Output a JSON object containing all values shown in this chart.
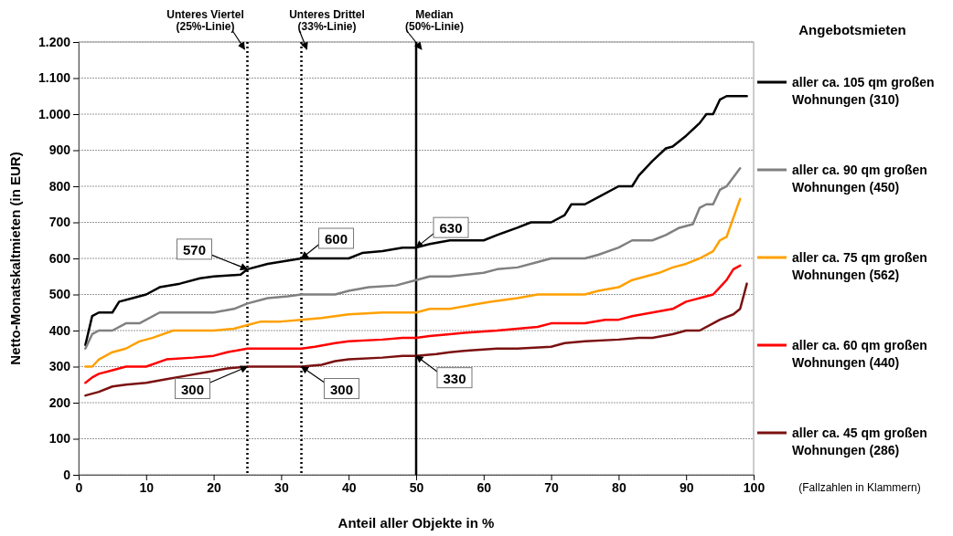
{
  "chart_data": {
    "type": "line",
    "xlabel": "Anteil aller Objekte in %",
    "ylabel": "Netto-Monatskaltmieten (in EUR)",
    "legend_title": "Angebotsmieten",
    "legend": "right",
    "grid": "y",
    "line_style": "solid",
    "marker": "none",
    "xlim": [
      0,
      100
    ],
    "xticks": [
      0,
      10,
      20,
      30,
      40,
      50,
      60,
      70,
      80,
      90,
      100
    ],
    "ylim": [
      0,
      1200
    ],
    "yticks": [
      0,
      100,
      200,
      300,
      400,
      500,
      600,
      700,
      800,
      900,
      {
        "value": 1000,
        "label": "1.000"
      },
      {
        "value": 1100,
        "label": "1.100"
      },
      {
        "value": 1200,
        "label": "1.200"
      }
    ],
    "series": [
      {
        "name": "aller ca. 105 qm großen Wohnungen (310)",
        "color": "#000000",
        "x": [
          1,
          2,
          3,
          5,
          6,
          8,
          10,
          12,
          15,
          18,
          20,
          24,
          25,
          28,
          33,
          40,
          42,
          45,
          48,
          50,
          52,
          55,
          60,
          62,
          65,
          67,
          70,
          72,
          73,
          75,
          77,
          80,
          82,
          83,
          85,
          87,
          88,
          90,
          92,
          93,
          94,
          95,
          96,
          99
        ],
        "values": [
          360,
          440,
          450,
          450,
          480,
          490,
          500,
          520,
          530,
          545,
          550,
          555,
          570,
          585,
          600,
          600,
          615,
          620,
          630,
          630,
          640,
          650,
          650,
          665,
          685,
          700,
          700,
          720,
          750,
          750,
          770,
          800,
          800,
          830,
          870,
          905,
          910,
          940,
          975,
          1000,
          1000,
          1040,
          1050,
          1050
        ]
      },
      {
        "name": "aller ca. 90 qm großen Wohnungen (450)",
        "color": "#808080",
        "x": [
          1,
          2,
          3,
          5,
          7,
          9,
          12,
          15,
          20,
          23,
          25,
          28,
          31,
          33,
          38,
          40,
          43,
          47,
          50,
          52,
          55,
          60,
          62,
          65,
          68,
          70,
          75,
          77,
          80,
          82,
          85,
          87,
          89,
          91,
          92,
          93,
          94,
          95,
          96,
          98
        ],
        "values": [
          350,
          390,
          400,
          400,
          420,
          420,
          450,
          450,
          450,
          460,
          475,
          490,
          495,
          500,
          500,
          510,
          520,
          525,
          540,
          550,
          550,
          560,
          570,
          575,
          590,
          600,
          600,
          610,
          630,
          650,
          650,
          665,
          685,
          695,
          740,
          750,
          750,
          790,
          800,
          850
        ]
      },
      {
        "name": "aller ca. 75 qm großen Wohnungen (562)",
        "color": "#ffa000",
        "x": [
          1,
          2,
          3,
          5,
          7,
          9,
          11,
          14,
          20,
          23,
          25,
          27,
          30,
          33,
          36,
          40,
          45,
          50,
          52,
          55,
          58,
          61,
          65,
          68,
          72,
          75,
          77,
          80,
          82,
          84,
          86,
          88,
          90,
          92,
          93,
          94,
          95,
          96,
          98
        ],
        "values": [
          300,
          300,
          320,
          340,
          350,
          370,
          380,
          400,
          400,
          405,
          415,
          425,
          425,
          430,
          435,
          445,
          450,
          450,
          460,
          460,
          470,
          480,
          490,
          500,
          500,
          500,
          510,
          520,
          540,
          550,
          560,
          575,
          585,
          600,
          610,
          620,
          650,
          660,
          765
        ]
      },
      {
        "name": "aller ca. 60 qm großen Wohnungen (440)",
        "color": "#ff0000",
        "x": [
          1,
          2,
          3,
          5,
          7,
          10,
          13,
          17,
          20,
          22,
          25,
          30,
          33,
          35,
          38,
          40,
          45,
          48,
          50,
          52,
          55,
          58,
          62,
          65,
          68,
          70,
          75,
          78,
          80,
          82,
          85,
          88,
          90,
          92,
          94,
          95,
          96,
          97,
          98
        ],
        "values": [
          255,
          270,
          280,
          290,
          300,
          300,
          320,
          325,
          330,
          340,
          350,
          350,
          350,
          355,
          365,
          370,
          375,
          380,
          380,
          385,
          390,
          395,
          400,
          405,
          410,
          420,
          420,
          430,
          430,
          440,
          450,
          460,
          480,
          490,
          500,
          520,
          540,
          570,
          580
        ]
      },
      {
        "name": "aller ca. 45 qm großen Wohnungen (286)",
        "color": "#7b1010",
        "x": [
          1,
          2,
          3,
          5,
          7,
          10,
          13,
          16,
          19,
          22,
          25,
          30,
          33,
          36,
          38,
          40,
          45,
          48,
          50,
          53,
          55,
          58,
          62,
          65,
          70,
          72,
          75,
          80,
          83,
          85,
          88,
          90,
          92,
          94,
          95,
          97,
          98,
          99
        ],
        "values": [
          220,
          225,
          230,
          245,
          250,
          255,
          265,
          275,
          285,
          295,
          300,
          300,
          300,
          305,
          315,
          320,
          325,
          330,
          330,
          335,
          340,
          345,
          350,
          350,
          355,
          365,
          370,
          375,
          380,
          380,
          390,
          400,
          400,
          420,
          430,
          445,
          460,
          530
        ]
      }
    ],
    "ref_lines": [
      {
        "axis": "x",
        "value": 25,
        "label": "Unteres Viertel (25%-Linie)",
        "line_style": "dotted"
      },
      {
        "axis": "x",
        "value": 33,
        "label": "Unteres Drittel (33%-Linie)",
        "line_style": "dotted"
      },
      {
        "axis": "x",
        "value": 50,
        "label": "Median (50%-Linie)",
        "line_style": "solid"
      }
    ],
    "annotations": [
      {
        "text": "570",
        "x": 25,
        "y": 570
      },
      {
        "text": "600",
        "x": 33,
        "y": 600
      },
      {
        "text": "630",
        "x": 50,
        "y": 630
      },
      {
        "text": "300",
        "x": 25,
        "y": 300
      },
      {
        "text": "300",
        "x": 33,
        "y": 300
      },
      {
        "text": "330",
        "x": 50,
        "y": 330
      },
      "(Fallzahlen in Klammern)"
    ]
  }
}
